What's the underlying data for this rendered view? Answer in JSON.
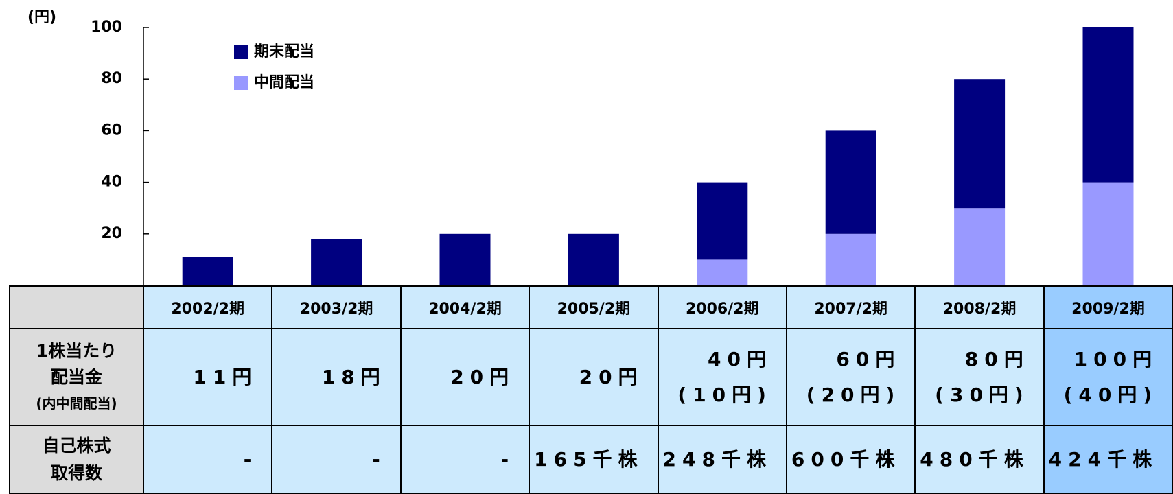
{
  "chart_data": {
    "type": "stacked_bar",
    "unit_label": "(円)",
    "categories": [
      "2002/2期",
      "2003/2期",
      "2004/2期",
      "2005/2期",
      "2006/2期",
      "2007/2期",
      "2008/2期",
      "2009/2期"
    ],
    "series": [
      {
        "name": "期末配当",
        "color": "#000080",
        "values": [
          11,
          18,
          20,
          20,
          30,
          40,
          50,
          60
        ]
      },
      {
        "name": "中間配当",
        "color": "#9999ff",
        "values": [
          0,
          0,
          0,
          0,
          10,
          20,
          30,
          40
        ]
      }
    ],
    "ylim": [
      0,
      100
    ],
    "yticks": [
      20,
      40,
      60,
      80,
      100
    ],
    "legend": "upper-left"
  },
  "table": {
    "rows": [
      {
        "label": [
          "1株当たり",
          "配当金",
          "(内中間配当)"
        ],
        "cells": [
          [
            "11円"
          ],
          [
            "18円"
          ],
          [
            "20円"
          ],
          [
            "20円"
          ],
          [
            "40円",
            "(10円)"
          ],
          [
            "60円",
            "(20円)"
          ],
          [
            "80円",
            "(30円)"
          ],
          [
            "100円",
            "(40円)"
          ]
        ]
      },
      {
        "label": [
          "自己株式",
          "取得数"
        ],
        "cells": [
          [
            "-"
          ],
          [
            "-"
          ],
          [
            "-"
          ],
          [
            "165千株"
          ],
          [
            "248千株"
          ],
          [
            "600千株"
          ],
          [
            "480千株"
          ],
          [
            "424千株"
          ]
        ]
      }
    ]
  }
}
